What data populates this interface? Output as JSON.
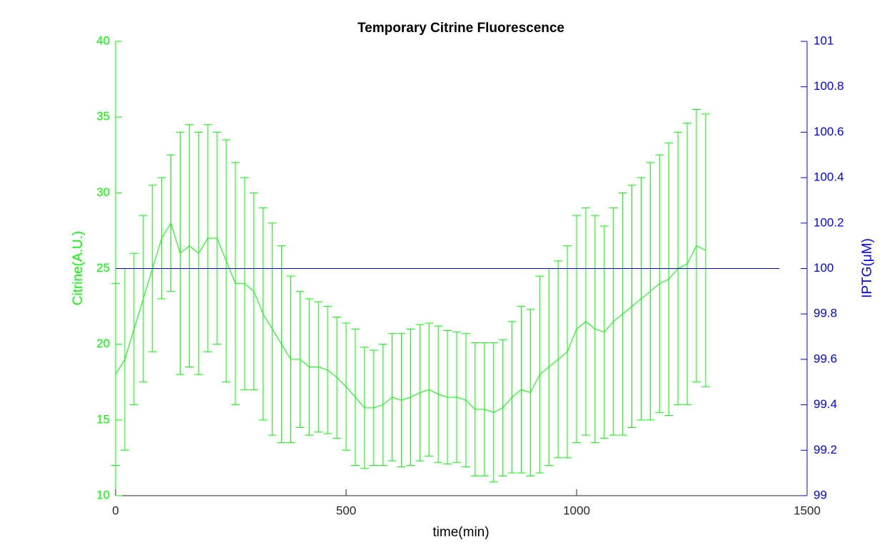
{
  "chart_data": {
    "type": "errorbar",
    "title": "Temporary Citrine Fluorescence",
    "xlabel": "time(min)",
    "ylabel": "Citrine(A.U.)",
    "y2label": "IPTG(μM)",
    "xlim": [
      0,
      1500
    ],
    "xticks": [
      0,
      500,
      1000,
      1500
    ],
    "ylim": [
      10,
      40
    ],
    "yticks": [
      10,
      15,
      20,
      25,
      30,
      35,
      40
    ],
    "y2lim": [
      99,
      101
    ],
    "y2ticks": [
      99,
      99.2,
      99.4,
      99.6,
      99.8,
      100,
      100.2,
      100.4,
      100.6,
      100.8,
      101
    ],
    "series": [
      {
        "color": "#00ff00",
        "x": [
          0,
          20,
          40,
          60,
          80,
          100,
          120,
          140,
          160,
          180,
          200,
          220,
          240,
          260,
          280,
          300,
          320,
          340,
          360,
          380,
          400,
          420,
          440,
          460,
          480,
          500,
          520,
          540,
          560,
          580,
          600,
          620,
          640,
          660,
          680,
          700,
          720,
          740,
          760,
          780,
          800,
          820,
          840,
          860,
          880,
          900,
          920,
          940,
          960,
          980,
          1000,
          1020,
          1040,
          1060,
          1080,
          1100,
          1120,
          1140,
          1160,
          1180,
          1200,
          1220,
          1240,
          1260,
          1280
        ],
        "values": [
          18,
          19,
          21,
          23,
          25,
          27,
          28,
          26,
          26.5,
          26,
          27,
          27,
          25.5,
          24,
          24,
          23.5,
          22,
          21,
          20,
          19,
          19,
          18.5,
          18.5,
          18.3,
          17.8,
          17.2,
          16.5,
          15.8,
          15.8,
          16,
          16.5,
          16.3,
          16.5,
          16.8,
          17,
          16.7,
          16.5,
          16.5,
          16.3,
          15.7,
          15.7,
          15.5,
          15.8,
          16.5,
          17,
          16.8,
          18,
          18.5,
          19,
          19.5,
          21,
          21.5,
          21,
          20.8,
          21.5,
          22,
          22.5,
          23,
          23.5,
          24,
          24.3,
          25,
          25.3,
          26.5,
          26.2
        ],
        "errors": [
          6,
          6,
          5,
          5.5,
          5.5,
          4,
          4.5,
          8,
          8,
          8,
          7.5,
          7,
          8,
          8,
          7,
          6.5,
          7,
          7,
          6.5,
          5.5,
          4.5,
          4.5,
          4.3,
          4.2,
          4,
          4.2,
          4.5,
          4,
          3.8,
          4,
          4.2,
          4.4,
          4.5,
          4.5,
          4.4,
          4.5,
          4.4,
          4.3,
          4.4,
          4.4,
          4.4,
          4.6,
          4.5,
          5,
          5.5,
          5.5,
          6.5,
          6.5,
          6.5,
          7,
          7.5,
          7.5,
          7.5,
          7,
          7.5,
          8,
          8,
          8,
          8.5,
          8.5,
          9,
          9,
          9.3,
          9,
          9
        ]
      },
      {
        "color": "#0000ff",
        "axis": "y2",
        "x": [
          0,
          1440
        ],
        "values": [
          100,
          100
        ]
      }
    ]
  }
}
